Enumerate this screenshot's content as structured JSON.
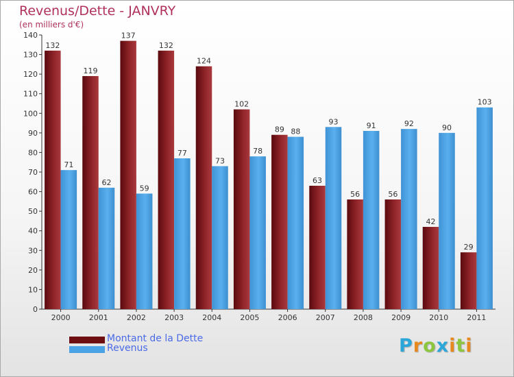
{
  "header": {
    "title": "Revenus/Dette - JANVRY",
    "subtitle": "(en milliers d'€)"
  },
  "chart_data": {
    "type": "bar",
    "categories": [
      "2000",
      "2001",
      "2002",
      "2003",
      "2004",
      "2005",
      "2006",
      "2007",
      "2008",
      "2009",
      "2010",
      "2011"
    ],
    "series": [
      {
        "name": "Montant de la Dette",
        "values": [
          132,
          119,
          137,
          132,
          124,
          102,
          89,
          63,
          56,
          56,
          42,
          29
        ],
        "color": "#8b1f24"
      },
      {
        "name": "Revenus",
        "values": [
          71,
          62,
          59,
          77,
          73,
          78,
          88,
          93,
          91,
          92,
          90,
          103
        ],
        "color": "#4ba3e6"
      }
    ],
    "title": "Revenus/Dette - JANVRY",
    "ylabel": "(en milliers d'€)",
    "xlabel": "",
    "ylim": [
      0,
      140
    ],
    "yticks": [
      0,
      10,
      20,
      30,
      40,
      50,
      60,
      70,
      80,
      90,
      100,
      110,
      120,
      130,
      140
    ],
    "grid": false,
    "legend_position": "bottom-left"
  },
  "legend": {
    "items": [
      {
        "label": "Montant de la Dette",
        "color": "#6e0e12"
      },
      {
        "label": "Revenus",
        "color": "#4ba3e6"
      }
    ]
  },
  "logo": {
    "letters": [
      "P",
      "r",
      "o",
      "x",
      "i",
      "t",
      "i"
    ],
    "colors": [
      "#2aa7d8",
      "#e8891f",
      "#8cc63f",
      "#2aa7d8",
      "#e8891f",
      "#8cc63f",
      "#e8891f"
    ]
  }
}
